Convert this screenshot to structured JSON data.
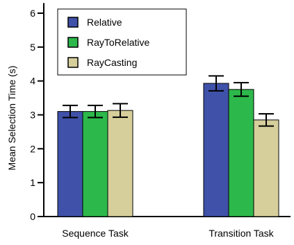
{
  "chart_data": {
    "type": "bar",
    "title": "",
    "xlabel": "",
    "ylabel": "Mean Selection Time (s)",
    "ylim": [
      0,
      6.3
    ],
    "yticks": [
      0,
      1,
      2,
      3,
      4,
      5,
      6
    ],
    "categories": [
      "Sequence Task",
      "Transition Task"
    ],
    "series": [
      {
        "name": "Relative",
        "color": "#3F51A8",
        "values": [
          3.1,
          3.93
        ],
        "errors": [
          0.18,
          0.22
        ]
      },
      {
        "name": "RayToRelative",
        "color": "#2DB84B",
        "values": [
          3.1,
          3.75
        ],
        "errors": [
          0.18,
          0.2
        ]
      },
      {
        "name": "RayCasting",
        "color": "#D6CF9C",
        "values": [
          3.13,
          2.85
        ],
        "errors": [
          0.2,
          0.18
        ]
      }
    ],
    "error_bars": true,
    "grid": false,
    "legend_position": "top-left"
  }
}
